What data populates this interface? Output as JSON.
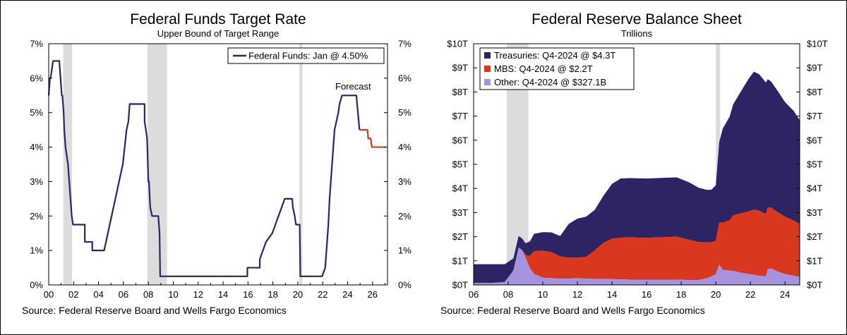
{
  "chart_data": [
    {
      "type": "line",
      "title": "Federal Funds Target Rate",
      "subtitle": "Upper Bound of Target Range",
      "source": "Source: Federal Reserve Board and Wells Fargo Economics",
      "legend": "Federal Funds: Jan @ 4.50%",
      "annotation": "Forecast",
      "xlim": [
        2000,
        2027.2
      ],
      "ylim": [
        0,
        7
      ],
      "x_ticks": [
        2000,
        2002,
        2004,
        2006,
        2008,
        2010,
        2012,
        2014,
        2016,
        2018,
        2020,
        2022,
        2024,
        2026
      ],
      "x_tick_labels": [
        "00",
        "02",
        "04",
        "06",
        "08",
        "10",
        "12",
        "14",
        "16",
        "18",
        "20",
        "22",
        "24",
        "26"
      ],
      "y_ticks": [
        0,
        1,
        2,
        3,
        4,
        5,
        6,
        7
      ],
      "y_tick_labels": [
        "0%",
        "1%",
        "2%",
        "3%",
        "4%",
        "5%",
        "6%",
        "7%"
      ],
      "recessions": [
        [
          2001.17,
          2001.87
        ],
        [
          2007.92,
          2009.5
        ],
        [
          2020.12,
          2020.37
        ]
      ],
      "colors": {
        "actual": "#2d2464",
        "forecast": "#d9381e",
        "recession": "#dcdcdc"
      },
      "series": [
        {
          "name": "Federal Funds",
          "x": [
            2000,
            2000.1,
            2000.15,
            2000.35,
            2000.35,
            2000.85,
            2000.85,
            2001.05,
            2001.1,
            2001.2,
            2001.25,
            2001.35,
            2001.45,
            2001.55,
            2001.65,
            2001.75,
            2001.85,
            2001.95,
            2002.9,
            2002.9,
            2003.5,
            2003.5,
            2004.45,
            2004.6,
            2004.75,
            2004.9,
            2005.05,
            2005.2,
            2005.35,
            2005.5,
            2005.65,
            2005.8,
            2005.95,
            2006.1,
            2006.25,
            2006.4,
            2006.5,
            2007.7,
            2007.7,
            2007.8,
            2007.9,
            2008.0,
            2008.05,
            2008.15,
            2008.3,
            2008.35,
            2008.8,
            2008.9,
            2008.95,
            2015.95,
            2015.95,
            2016.95,
            2016.95,
            2017.2,
            2017.45,
            2017.95,
            2018.2,
            2018.45,
            2018.7,
            2018.95,
            2019.55,
            2019.6,
            2019.75,
            2019.85,
            2020.15,
            2020.2,
            2021.95,
            2022.2,
            2022.3,
            2022.45,
            2022.55,
            2022.7,
            2022.95,
            2023.1,
            2023.25,
            2023.35,
            2023.55,
            2024.7,
            2024.95
          ],
          "values": [
            5.5,
            6.0,
            6.0,
            6.5,
            6.5,
            6.5,
            6.5,
            5.5,
            5.5,
            5.0,
            4.5,
            4.0,
            3.75,
            3.5,
            3.0,
            2.5,
            2.0,
            1.75,
            1.75,
            1.25,
            1.25,
            1.0,
            1.0,
            1.25,
            1.5,
            1.75,
            2.0,
            2.25,
            2.5,
            2.75,
            3.0,
            3.25,
            3.5,
            4.0,
            4.5,
            4.75,
            5.25,
            5.25,
            4.75,
            4.5,
            4.25,
            3.0,
            3.0,
            2.25,
            2.0,
            2.0,
            2.0,
            1.5,
            0.25,
            0.25,
            0.5,
            0.5,
            0.75,
            1.0,
            1.25,
            1.5,
            1.75,
            2.0,
            2.25,
            2.5,
            2.5,
            2.25,
            2.0,
            1.75,
            1.75,
            0.25,
            0.25,
            0.5,
            1.0,
            1.75,
            2.5,
            3.25,
            4.5,
            4.75,
            5.0,
            5.25,
            5.5,
            5.5,
            4.5
          ]
        },
        {
          "name": "Forecast",
          "x": [
            2024.95,
            2025.6,
            2025.65,
            2025.85,
            2025.95,
            2026.05,
            2027.0
          ],
          "values": [
            4.5,
            4.5,
            4.25,
            4.25,
            4.0,
            4.0,
            4.0
          ]
        }
      ]
    },
    {
      "type": "area",
      "stacked": true,
      "title": "Federal Reserve Balance Sheet",
      "subtitle": "Trillions",
      "source": "Source: Federal Reserve Board and Wells Fargo Economics",
      "xlim": [
        2006,
        2024.85
      ],
      "ylim": [
        0,
        10
      ],
      "x_ticks": [
        2006,
        2008,
        2010,
        2012,
        2014,
        2016,
        2018,
        2020,
        2022,
        2024
      ],
      "x_tick_labels": [
        "06",
        "08",
        "10",
        "12",
        "14",
        "16",
        "18",
        "20",
        "22",
        "24"
      ],
      "y_ticks": [
        0,
        1,
        2,
        3,
        4,
        5,
        6,
        7,
        8,
        9,
        10
      ],
      "y_tick_labels": [
        "$0T",
        "$1T",
        "$2T",
        "$3T",
        "$4T",
        "$5T",
        "$6T",
        "$7T",
        "$8T",
        "$9T",
        "$10T"
      ],
      "recessions": [
        [
          2007.92,
          2009.17
        ],
        [
          2020.0,
          2020.25
        ]
      ],
      "x": [
        2006,
        2007,
        2007.8,
        2008.3,
        2008.6,
        2008.8,
        2009.0,
        2009.25,
        2009.5,
        2010.0,
        2010.5,
        2011.0,
        2011.5,
        2012.0,
        2012.5,
        2013.0,
        2013.5,
        2014.0,
        2014.5,
        2015.0,
        2016.0,
        2017.0,
        2017.75,
        2018.5,
        2019.0,
        2019.5,
        2019.75,
        2020.0,
        2020.2,
        2020.4,
        2020.8,
        2021.0,
        2021.5,
        2021.9,
        2022.2,
        2022.5,
        2022.9,
        2023.0,
        2023.2,
        2023.6,
        2024.0,
        2024.5,
        2024.85
      ],
      "series": [
        {
          "name": "Treasuries",
          "legend": "Treasuries: Q4-2024 @ $4.3T",
          "color": "#2d2464",
          "values": [
            0.78,
            0.78,
            0.74,
            0.5,
            0.48,
            0.48,
            0.48,
            0.6,
            0.72,
            0.77,
            0.82,
            0.85,
            1.4,
            1.62,
            1.67,
            1.68,
            1.95,
            2.28,
            2.45,
            2.46,
            2.46,
            2.46,
            2.46,
            2.38,
            2.25,
            2.18,
            2.18,
            2.3,
            3.35,
            3.9,
            4.3,
            4.6,
            5.1,
            5.5,
            5.72,
            5.66,
            5.45,
            5.32,
            5.23,
            5.02,
            4.75,
            4.55,
            4.3
          ]
        },
        {
          "name": "MBS",
          "legend": "MBS: Q4-2024 @ $2.2T",
          "color": "#d9381e",
          "values": [
            0,
            0,
            0,
            0,
            0,
            0,
            0.1,
            0.5,
            0.95,
            1.12,
            1.08,
            0.92,
            0.87,
            0.85,
            0.9,
            1.18,
            1.5,
            1.67,
            1.73,
            1.75,
            1.73,
            1.76,
            1.78,
            1.66,
            1.58,
            1.48,
            1.42,
            1.38,
            1.73,
            1.96,
            2.08,
            2.3,
            2.48,
            2.6,
            2.7,
            2.7,
            2.58,
            2.56,
            2.52,
            2.45,
            2.38,
            2.29,
            2.2
          ]
        },
        {
          "name": "Other",
          "legend": "Other: Q4-2024 @ $327.1B",
          "color": "#a593e0",
          "values": [
            0.08,
            0.08,
            0.12,
            0.6,
            1.55,
            1.45,
            1.15,
            0.7,
            0.45,
            0.3,
            0.28,
            0.26,
            0.26,
            0.28,
            0.26,
            0.25,
            0.24,
            0.24,
            0.23,
            0.22,
            0.22,
            0.22,
            0.22,
            0.2,
            0.2,
            0.28,
            0.35,
            0.45,
            0.85,
            0.62,
            0.6,
            0.58,
            0.5,
            0.45,
            0.42,
            0.38,
            0.36,
            0.65,
            0.68,
            0.55,
            0.45,
            0.38,
            0.33
          ]
        }
      ]
    }
  ]
}
